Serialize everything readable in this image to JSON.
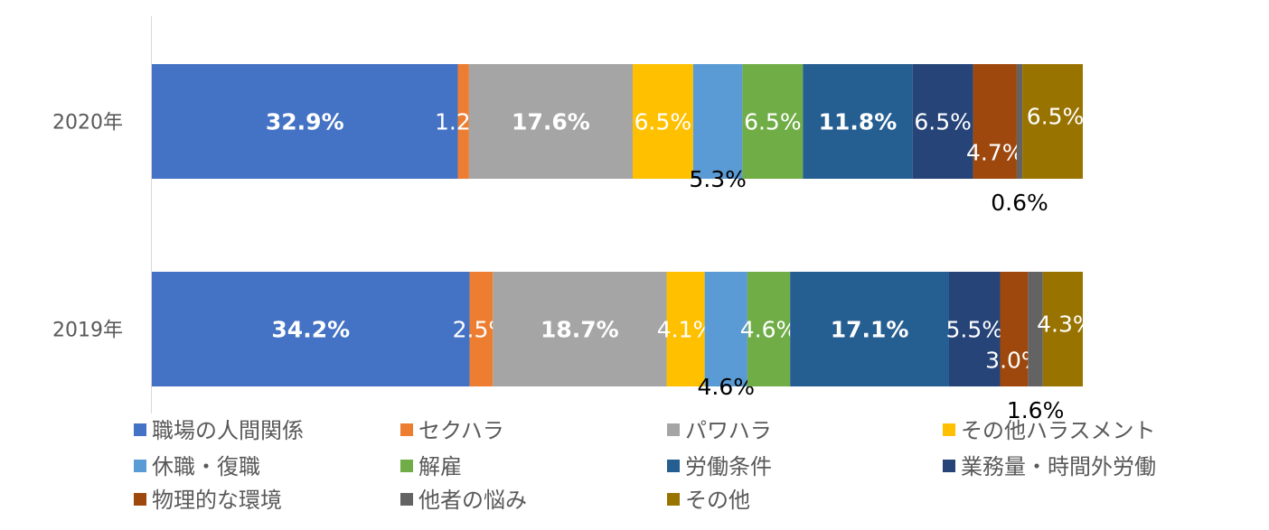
{
  "chart_data": {
    "type": "bar",
    "orientation": "horizontal",
    "stacked": "percent",
    "categories": [
      "2020年",
      "2019年"
    ],
    "series": [
      {
        "name": "職場の人間関係",
        "color": "#4472C4",
        "values": [
          32.9,
          34.2
        ],
        "labels": [
          "32.9%",
          "34.2%"
        ]
      },
      {
        "name": "セクハラ",
        "color": "#ED7D31",
        "values": [
          1.2,
          2.5
        ],
        "labels": [
          "1.2%",
          "2.5%"
        ]
      },
      {
        "name": "パワハラ",
        "color": "#A5A5A5",
        "values": [
          17.6,
          18.7
        ],
        "labels": [
          "17.6%",
          "18.7%"
        ]
      },
      {
        "name": "その他ハラスメント",
        "color": "#FFC000",
        "values": [
          6.5,
          4.1
        ],
        "labels": [
          "6.5%",
          "4.1%"
        ]
      },
      {
        "name": "休職・復職",
        "color": "#5B9BD5",
        "values": [
          5.3,
          4.6
        ],
        "labels": [
          "5.3%",
          "4.6%"
        ]
      },
      {
        "name": "解雇",
        "color": "#70AD47",
        "values": [
          6.5,
          4.6
        ],
        "labels": [
          "6.5%",
          "4.6%"
        ]
      },
      {
        "name": "労働条件",
        "color": "#255E91",
        "values": [
          11.8,
          17.1
        ],
        "labels": [
          "11.8%",
          "17.1%"
        ]
      },
      {
        "name": "業務量・時間外労働",
        "color": "#264478",
        "values": [
          6.5,
          5.5
        ],
        "labels": [
          "6.5%",
          "5.5%"
        ]
      },
      {
        "name": "物理的な環境",
        "color": "#9E480E",
        "values": [
          4.7,
          3.0
        ],
        "labels": [
          "4.7%",
          "3.0%"
        ]
      },
      {
        "name": "他者の悩み",
        "color": "#636363",
        "values": [
          0.6,
          1.6
        ],
        "labels": [
          "0.6%",
          "1.6%"
        ]
      },
      {
        "name": "その他",
        "color": "#997300",
        "values": [
          6.5,
          4.3
        ],
        "labels": [
          "6.5%",
          "4.3%"
        ]
      }
    ],
    "legend_position": "bottom",
    "grid": false
  }
}
